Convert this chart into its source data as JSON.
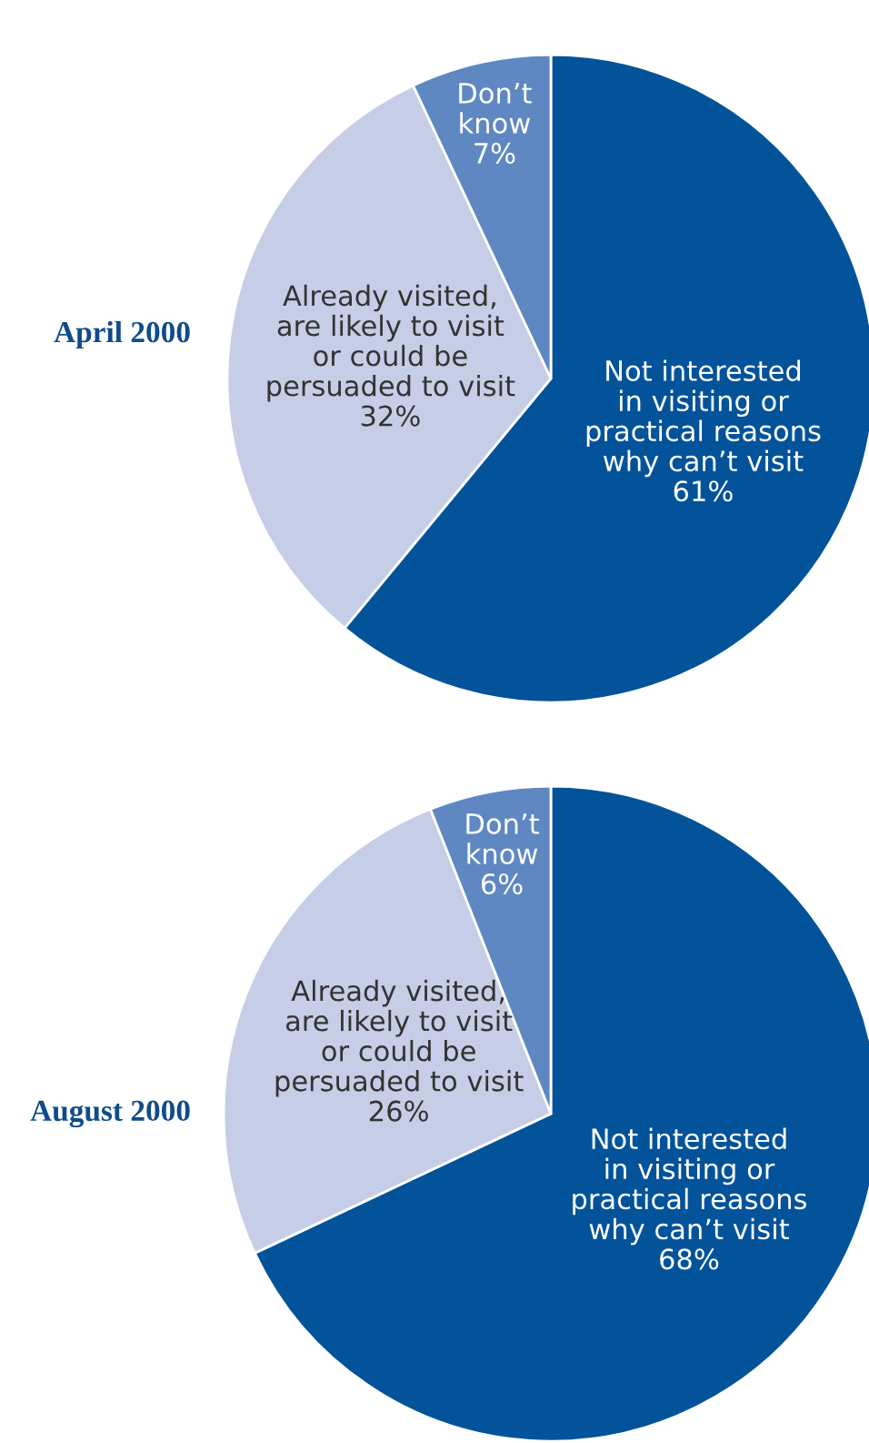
{
  "chart_data": [
    {
      "type": "pie",
      "title": "April 2000",
      "categories": [
        "Not interested\nin visiting or\npractical reasons\nwhy can’t visit",
        "Already visited,\nare likely to visit\nor could be\npersuaded to visit",
        "Don’t\nknow"
      ],
      "values": [
        61,
        32,
        7
      ],
      "value_labels": [
        "61%",
        "32%",
        "7%"
      ],
      "colors": [
        "#02539a",
        "#c6cde6",
        "#5f88c2"
      ]
    },
    {
      "type": "pie",
      "title": "August 2000",
      "categories": [
        "Not interested\nin visiting or\npractical reasons\nwhy can’t visit",
        "Already visited,\nare likely to visit\nor could be\npersuaded to visit",
        "Don’t\nknow"
      ],
      "values": [
        68,
        26,
        6
      ],
      "value_labels": [
        "68%",
        "26%",
        "6%"
      ],
      "colors": [
        "#02539a",
        "#c6cde6",
        "#5f88c2"
      ]
    }
  ]
}
